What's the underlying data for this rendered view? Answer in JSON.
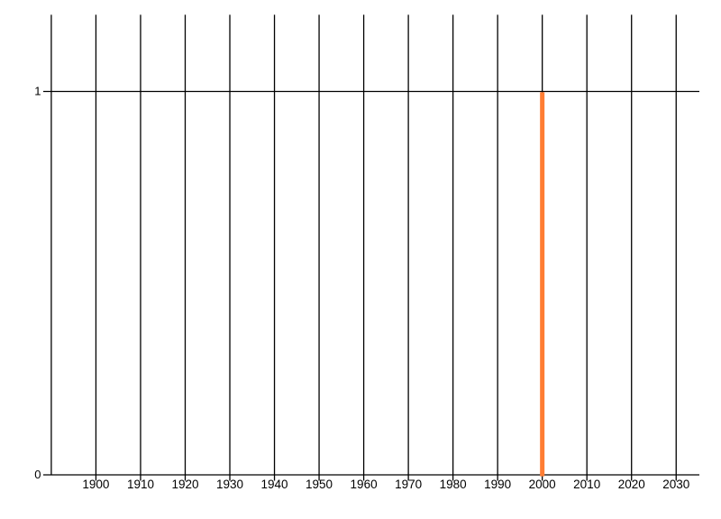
{
  "page": {
    "background": "#ffffff"
  },
  "chart_data": {
    "type": "bar",
    "title": "",
    "xlabel": "",
    "ylabel": "",
    "bars": [
      {
        "x": 2000,
        "value": 1
      }
    ],
    "bar_color": "#ff7d33",
    "grid_color": "#000000",
    "axis_color": "#000000",
    "label_color": "#000000",
    "xlim": [
      1888.2,
      2035.2
    ],
    "ylim": [
      0,
      1.2
    ],
    "x_gridline_years": [
      1890,
      1900,
      1910,
      1920,
      1930,
      1940,
      1950,
      1960,
      1970,
      1980,
      1990,
      2000,
      2010,
      2020,
      2030
    ],
    "x_ticks": [
      {
        "year": 1900,
        "label": "1900"
      },
      {
        "year": 1910,
        "label": "1910"
      },
      {
        "year": 1920,
        "label": "1920"
      },
      {
        "year": 1930,
        "label": "1930"
      },
      {
        "year": 1940,
        "label": "1940"
      },
      {
        "year": 1950,
        "label": "1950"
      },
      {
        "year": 1960,
        "label": "1960"
      },
      {
        "year": 1970,
        "label": "1970"
      },
      {
        "year": 1980,
        "label": "1980"
      },
      {
        "year": 1990,
        "label": "1990"
      },
      {
        "year": 2000,
        "label": "2000"
      },
      {
        "year": 2010,
        "label": "2010"
      },
      {
        "year": 2020,
        "label": "2020"
      },
      {
        "year": 2030,
        "label": "2030"
      }
    ],
    "y_ticks": [
      {
        "value": 0,
        "label": "0"
      },
      {
        "value": 1,
        "label": "1"
      }
    ],
    "grid": true,
    "legend": null
  }
}
